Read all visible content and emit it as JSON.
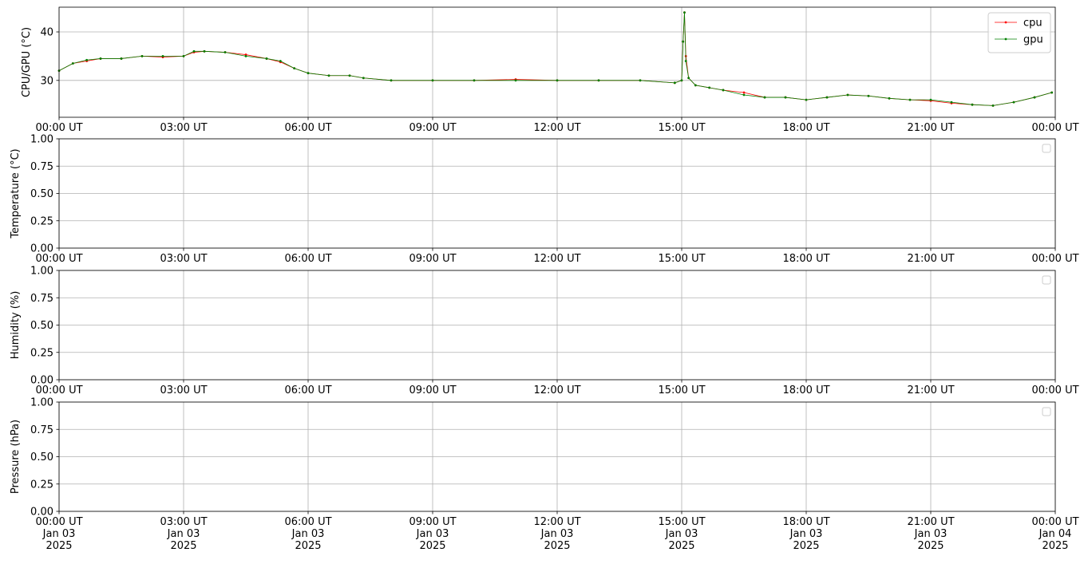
{
  "chart_data": [
    {
      "type": "line",
      "ylabel": "CPU/GPU (°C)",
      "legend": "upper right",
      "grid": true,
      "x": [
        "2025-01-03T00:00",
        "2025-01-03T00:20",
        "2025-01-03T00:40",
        "2025-01-03T01:00",
        "2025-01-03T01:30",
        "2025-01-03T02:00",
        "2025-01-03T02:30",
        "2025-01-03T03:00",
        "2025-01-03T03:15",
        "2025-01-03T03:30",
        "2025-01-03T04:00",
        "2025-01-03T04:30",
        "2025-01-03T05:00",
        "2025-01-03T05:20",
        "2025-01-03T05:40",
        "2025-01-03T06:00",
        "2025-01-03T06:30",
        "2025-01-03T07:00",
        "2025-01-03T07:20",
        "2025-01-03T08:00",
        "2025-01-03T09:00",
        "2025-01-03T10:00",
        "2025-01-03T11:00",
        "2025-01-03T12:00",
        "2025-01-03T13:00",
        "2025-01-03T14:00",
        "2025-01-03T14:50",
        "2025-01-03T15:00",
        "2025-01-03T15:02",
        "2025-01-03T15:04",
        "2025-01-03T15:06",
        "2025-01-03T15:10",
        "2025-01-03T15:20",
        "2025-01-03T15:40",
        "2025-01-03T16:00",
        "2025-01-03T16:30",
        "2025-01-03T17:00",
        "2025-01-03T17:30",
        "2025-01-03T18:00",
        "2025-01-03T18:30",
        "2025-01-03T19:00",
        "2025-01-03T19:30",
        "2025-01-03T20:00",
        "2025-01-03T20:30",
        "2025-01-03T21:00",
        "2025-01-03T21:30",
        "2025-01-03T22:00",
        "2025-01-03T22:30",
        "2025-01-03T23:00",
        "2025-01-03T23:30",
        "2025-01-03T23:55"
      ],
      "series": [
        {
          "name": "cpu",
          "color": "#ff0000",
          "values": [
            32,
            33.5,
            34,
            34.5,
            34.5,
            35,
            34.8,
            35,
            35.8,
            36,
            35.8,
            35.3,
            34.5,
            33.8,
            32.5,
            31.5,
            31,
            31,
            30.5,
            30,
            30,
            30,
            30.2,
            30,
            30,
            30,
            29.5,
            30,
            38,
            44,
            35,
            30.5,
            29,
            28.5,
            28,
            27.5,
            26.5,
            26.5,
            26,
            26.5,
            27,
            26.8,
            26.3,
            26,
            25.8,
            25.3,
            25,
            24.8,
            25.5,
            26.5,
            27.5
          ]
        },
        {
          "name": "gpu",
          "color": "#008000",
          "values": [
            32,
            33.5,
            34.2,
            34.5,
            34.5,
            35,
            35,
            35,
            36,
            36,
            35.8,
            35,
            34.5,
            34,
            32.5,
            31.5,
            31,
            31,
            30.5,
            30,
            30,
            30,
            30,
            30,
            30,
            30,
            29.5,
            30,
            38,
            44,
            34,
            30.5,
            29,
            28.5,
            28,
            27,
            26.5,
            26.5,
            26,
            26.5,
            27,
            26.8,
            26.3,
            26,
            26,
            25.5,
            25,
            24.8,
            25.5,
            26.5,
            27.5
          ]
        }
      ],
      "xlim": [
        "2025-01-03T00:00",
        "2025-01-04T00:00"
      ],
      "xticks": [
        {
          "value": "2025-01-03T00:00",
          "label": "00:00 UT"
        },
        {
          "value": "2025-01-03T03:00",
          "label": "03:00 UT"
        },
        {
          "value": "2025-01-03T06:00",
          "label": "06:00 UT"
        },
        {
          "value": "2025-01-03T09:00",
          "label": "09:00 UT"
        },
        {
          "value": "2025-01-03T12:00",
          "label": "12:00 UT"
        },
        {
          "value": "2025-01-03T15:00",
          "label": "15:00 UT"
        },
        {
          "value": "2025-01-03T18:00",
          "label": "18:00 UT"
        },
        {
          "value": "2025-01-03T21:00",
          "label": "21:00 UT"
        },
        {
          "value": "2025-01-04T00:00",
          "label": "00:00 UT"
        }
      ],
      "ylim": [
        22.4,
        45.1
      ],
      "yticks": [
        30,
        40
      ]
    },
    {
      "type": "line",
      "ylabel": "Temperature (°C)",
      "legend": "upper right",
      "grid": true,
      "series": [],
      "xlim": [
        "2025-01-03T00:00",
        "2025-01-04T00:00"
      ],
      "xticks": [
        {
          "value": "2025-01-03T00:00",
          "label": "00:00 UT"
        },
        {
          "value": "2025-01-03T03:00",
          "label": "03:00 UT"
        },
        {
          "value": "2025-01-03T06:00",
          "label": "06:00 UT"
        },
        {
          "value": "2025-01-03T09:00",
          "label": "09:00 UT"
        },
        {
          "value": "2025-01-03T12:00",
          "label": "12:00 UT"
        },
        {
          "value": "2025-01-03T15:00",
          "label": "15:00 UT"
        },
        {
          "value": "2025-01-03T18:00",
          "label": "18:00 UT"
        },
        {
          "value": "2025-01-03T21:00",
          "label": "21:00 UT"
        },
        {
          "value": "2025-01-04T00:00",
          "label": "00:00 UT"
        }
      ],
      "ylim": [
        0,
        1
      ],
      "yticks": [
        {
          "value": 0,
          "label": "0.00"
        },
        {
          "value": 0.25,
          "label": "0.25"
        },
        {
          "value": 0.5,
          "label": "0.50"
        },
        {
          "value": 0.75,
          "label": "0.75"
        },
        {
          "value": 1,
          "label": "1.00"
        }
      ]
    },
    {
      "type": "line",
      "ylabel": "Humidity (%)",
      "legend": "upper right",
      "grid": true,
      "series": [],
      "xlim": [
        "2025-01-03T00:00",
        "2025-01-04T00:00"
      ],
      "xticks": [
        {
          "value": "2025-01-03T00:00",
          "label": "00:00 UT"
        },
        {
          "value": "2025-01-03T03:00",
          "label": "03:00 UT"
        },
        {
          "value": "2025-01-03T06:00",
          "label": "06:00 UT"
        },
        {
          "value": "2025-01-03T09:00",
          "label": "09:00 UT"
        },
        {
          "value": "2025-01-03T12:00",
          "label": "12:00 UT"
        },
        {
          "value": "2025-01-03T15:00",
          "label": "15:00 UT"
        },
        {
          "value": "2025-01-03T18:00",
          "label": "18:00 UT"
        },
        {
          "value": "2025-01-03T21:00",
          "label": "21:00 UT"
        },
        {
          "value": "2025-01-04T00:00",
          "label": "00:00 UT"
        }
      ],
      "ylim": [
        0,
        1
      ],
      "yticks": [
        {
          "value": 0,
          "label": "0.00"
        },
        {
          "value": 0.25,
          "label": "0.25"
        },
        {
          "value": 0.5,
          "label": "0.50"
        },
        {
          "value": 0.75,
          "label": "0.75"
        },
        {
          "value": 1,
          "label": "1.00"
        }
      ]
    },
    {
      "type": "line",
      "ylabel": "Pressure (hPa)",
      "legend": "upper right",
      "grid": true,
      "series": [],
      "xlim": [
        "2025-01-03T00:00",
        "2025-01-04T00:00"
      ],
      "xticks": [
        {
          "value": "2025-01-03T00:00",
          "label": "00:00 UT\nJan 03\n2025"
        },
        {
          "value": "2025-01-03T03:00",
          "label": "03:00 UT\nJan 03\n2025"
        },
        {
          "value": "2025-01-03T06:00",
          "label": "06:00 UT\nJan 03\n2025"
        },
        {
          "value": "2025-01-03T09:00",
          "label": "09:00 UT\nJan 03\n2025"
        },
        {
          "value": "2025-01-03T12:00",
          "label": "12:00 UT\nJan 03\n2025"
        },
        {
          "value": "2025-01-03T15:00",
          "label": "15:00 UT\nJan 03\n2025"
        },
        {
          "value": "2025-01-03T18:00",
          "label": "18:00 UT\nJan 03\n2025"
        },
        {
          "value": "2025-01-03T21:00",
          "label": "21:00 UT\nJan 03\n2025"
        },
        {
          "value": "2025-01-04T00:00",
          "label": "00:00 UT\nJan 04\n2025"
        }
      ],
      "ylim": [
        0,
        1
      ],
      "yticks": [
        {
          "value": 0,
          "label": "0.00"
        },
        {
          "value": 0.25,
          "label": "0.25"
        },
        {
          "value": 0.5,
          "label": "0.50"
        },
        {
          "value": 0.75,
          "label": "0.75"
        },
        {
          "value": 1,
          "label": "1.00"
        }
      ]
    }
  ]
}
